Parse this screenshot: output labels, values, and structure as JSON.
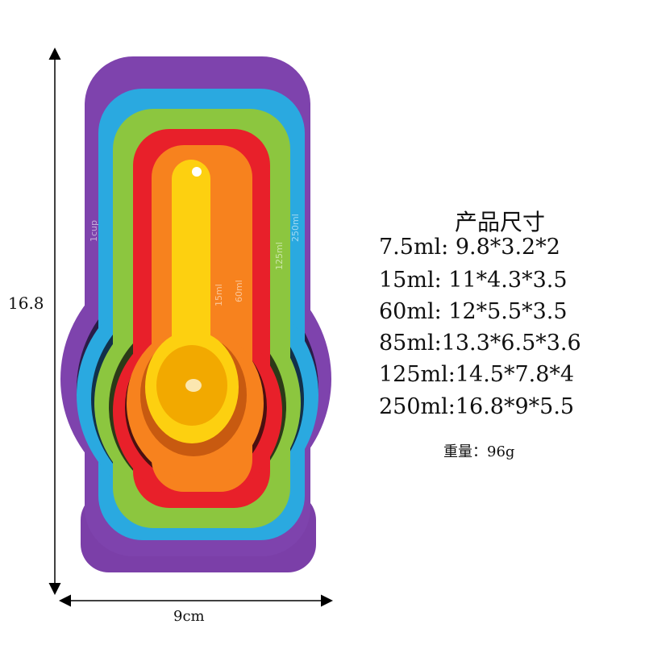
{
  "dimensions": {
    "height": "16.8",
    "width": "9cm"
  },
  "specs": {
    "title": "产品尺寸",
    "rows": [
      "7.5ml: 9.8*3.2*2",
      "15ml: 11*4.3*3.5",
      "60ml: 12*5.5*3.5",
      "85ml:13.3*6.5*3.6",
      "125ml:14.5*7.8*4",
      "250ml:16.8*9*5.5"
    ],
    "weight": "重量：96g"
  },
  "engravings": [
    "1cup",
    "250ml",
    "125ml",
    "60ml",
    "15ml"
  ]
}
